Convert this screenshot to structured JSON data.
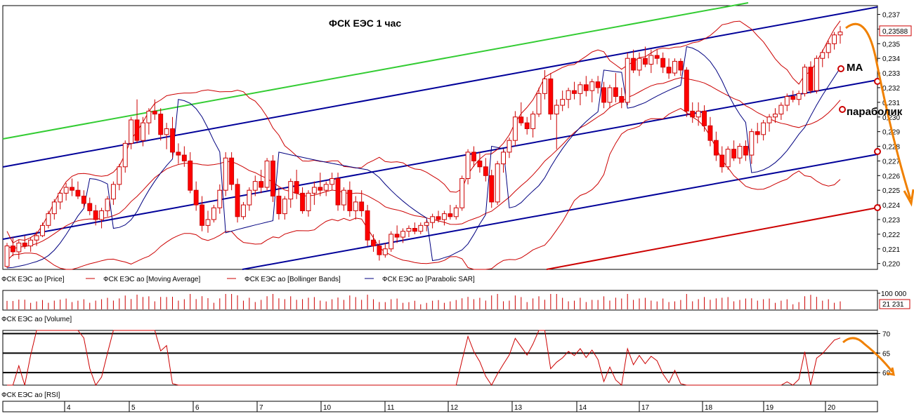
{
  "chart_data": {
    "type": "candlestick",
    "title": "ФСК ЕЭС   1 час",
    "annotations": [
      "МА",
      "параболик"
    ],
    "price_panel": {
      "ylim": [
        0.2196,
        0.2376
      ],
      "yticks": [
        "0,237",
        "0,236",
        "0,235",
        "0,234",
        "0,233",
        "0,232",
        "0,231",
        "0,230",
        "0,229",
        "0,228",
        "0,227",
        "0,226",
        "0,225",
        "0,224",
        "0,223",
        "0,222",
        "0,221",
        "0,220"
      ],
      "last_price_label": "0,23588",
      "candles_ohlc": [
        [
          0.2198,
          0.2214,
          0.2197,
          0.2212
        ],
        [
          0.2212,
          0.2218,
          0.2205,
          0.2208
        ],
        [
          0.2208,
          0.2216,
          0.2203,
          0.2214
        ],
        [
          0.2214,
          0.2219,
          0.221,
          0.2212
        ],
        [
          0.2212,
          0.2218,
          0.2208,
          0.2216
        ],
        [
          0.2216,
          0.2222,
          0.2212,
          0.2219
        ],
        [
          0.2219,
          0.2228,
          0.2218,
          0.2226
        ],
        [
          0.2226,
          0.2236,
          0.2224,
          0.2234
        ],
        [
          0.2234,
          0.2244,
          0.223,
          0.2242
        ],
        [
          0.2242,
          0.225,
          0.2237,
          0.2248
        ],
        [
          0.2248,
          0.2255,
          0.2243,
          0.2252
        ],
        [
          0.2252,
          0.2258,
          0.2246,
          0.225
        ],
        [
          0.225,
          0.2256,
          0.2244,
          0.2246
        ],
        [
          0.2246,
          0.225,
          0.2238,
          0.2241
        ],
        [
          0.2241,
          0.2245,
          0.2233,
          0.2236
        ],
        [
          0.2236,
          0.224,
          0.2226,
          0.223
        ],
        [
          0.223,
          0.2238,
          0.2224,
          0.2236
        ],
        [
          0.2236,
          0.2246,
          0.2232,
          0.2244
        ],
        [
          0.2244,
          0.2256,
          0.224,
          0.2254
        ],
        [
          0.2254,
          0.2268,
          0.225,
          0.2266
        ],
        [
          0.2266,
          0.2284,
          0.2262,
          0.2282
        ],
        [
          0.2282,
          0.23,
          0.2278,
          0.2298
        ],
        [
          0.2298,
          0.2312,
          0.2282,
          0.2284
        ],
        [
          0.2284,
          0.23,
          0.228,
          0.2296
        ],
        [
          0.2296,
          0.2306,
          0.2288,
          0.2304
        ],
        [
          0.2304,
          0.2312,
          0.2298,
          0.2302
        ],
        [
          0.2302,
          0.2306,
          0.2284,
          0.2288
        ],
        [
          0.2288,
          0.2296,
          0.2278,
          0.2292
        ],
        [
          0.2292,
          0.23,
          0.2272,
          0.2276
        ],
        [
          0.2276,
          0.2282,
          0.2268,
          0.2274
        ],
        [
          0.2274,
          0.228,
          0.2266,
          0.227
        ],
        [
          0.227,
          0.2276,
          0.2248,
          0.225
        ],
        [
          0.225,
          0.2256,
          0.2236,
          0.224
        ],
        [
          0.224,
          0.2246,
          0.2222,
          0.2226
        ],
        [
          0.2226,
          0.2236,
          0.2221,
          0.223
        ],
        [
          0.223,
          0.224,
          0.2228,
          0.2238
        ],
        [
          0.2238,
          0.2254,
          0.2234,
          0.225
        ],
        [
          0.225,
          0.2276,
          0.2246,
          0.2272
        ],
        [
          0.2272,
          0.2276,
          0.225,
          0.2254
        ],
        [
          0.2254,
          0.2258,
          0.2228,
          0.2232
        ],
        [
          0.2232,
          0.2242,
          0.223,
          0.224
        ],
        [
          0.224,
          0.2252,
          0.2236,
          0.225
        ],
        [
          0.225,
          0.226,
          0.2246,
          0.2256
        ],
        [
          0.2256,
          0.2264,
          0.2248,
          0.2252
        ],
        [
          0.2252,
          0.2272,
          0.225,
          0.227
        ],
        [
          0.227,
          0.2274,
          0.2242,
          0.2246
        ],
        [
          0.2246,
          0.2252,
          0.223,
          0.2234
        ],
        [
          0.2234,
          0.2246,
          0.223,
          0.2244
        ],
        [
          0.2244,
          0.2258,
          0.2238,
          0.2256
        ],
        [
          0.2256,
          0.2264,
          0.2244,
          0.2248
        ],
        [
          0.2248,
          0.2252,
          0.2234,
          0.2236
        ],
        [
          0.2236,
          0.225,
          0.2232,
          0.2248
        ],
        [
          0.2248,
          0.2256,
          0.224,
          0.2252
        ],
        [
          0.2252,
          0.2262,
          0.2246,
          0.225
        ],
        [
          0.225,
          0.2256,
          0.2246,
          0.2254
        ],
        [
          0.2254,
          0.2262,
          0.225,
          0.2258
        ],
        [
          0.2258,
          0.2262,
          0.2236,
          0.224
        ],
        [
          0.224,
          0.2252,
          0.2236,
          0.225
        ],
        [
          0.225,
          0.2256,
          0.2232,
          0.2236
        ],
        [
          0.2236,
          0.2246,
          0.223,
          0.2242
        ],
        [
          0.2242,
          0.225,
          0.2232,
          0.2236
        ],
        [
          0.2236,
          0.224,
          0.2212,
          0.2216
        ],
        [
          0.2216,
          0.222,
          0.2208,
          0.2212
        ],
        [
          0.2212,
          0.2216,
          0.2202,
          0.2206
        ],
        [
          0.2206,
          0.2214,
          0.2204,
          0.221
        ],
        [
          0.221,
          0.2222,
          0.2208,
          0.222
        ],
        [
          0.222,
          0.2226,
          0.2214,
          0.2218
        ],
        [
          0.2218,
          0.2224,
          0.2214,
          0.2222
        ],
        [
          0.2222,
          0.2226,
          0.2218,
          0.2224
        ],
        [
          0.2224,
          0.2228,
          0.222,
          0.2222
        ],
        [
          0.2222,
          0.2228,
          0.222,
          0.2226
        ],
        [
          0.2226,
          0.223,
          0.2222,
          0.2228
        ],
        [
          0.2228,
          0.2234,
          0.2224,
          0.2232
        ],
        [
          0.2232,
          0.2236,
          0.2228,
          0.223
        ],
        [
          0.223,
          0.2236,
          0.2226,
          0.2234
        ],
        [
          0.2234,
          0.224,
          0.223,
          0.2232
        ],
        [
          0.2232,
          0.224,
          0.223,
          0.2238
        ],
        [
          0.2238,
          0.226,
          0.2236,
          0.2258
        ],
        [
          0.2258,
          0.2278,
          0.2254,
          0.2276
        ],
        [
          0.2276,
          0.228,
          0.2266,
          0.227
        ],
        [
          0.227,
          0.2276,
          0.2262,
          0.2266
        ],
        [
          0.2266,
          0.2272,
          0.2256,
          0.226
        ],
        [
          0.226,
          0.2264,
          0.2238,
          0.2242
        ],
        [
          0.2242,
          0.227,
          0.224,
          0.2268
        ],
        [
          0.2268,
          0.2278,
          0.2262,
          0.2276
        ],
        [
          0.2276,
          0.2286,
          0.2272,
          0.2284
        ],
        [
          0.2284,
          0.2304,
          0.228,
          0.23
        ],
        [
          0.23,
          0.231,
          0.2294,
          0.2296
        ],
        [
          0.2296,
          0.23,
          0.2288,
          0.2292
        ],
        [
          0.2292,
          0.2304,
          0.2286,
          0.2302
        ],
        [
          0.2302,
          0.232,
          0.23,
          0.2316
        ],
        [
          0.2316,
          0.2332,
          0.2312,
          0.2326
        ],
        [
          0.2326,
          0.233,
          0.2298,
          0.2302
        ],
        [
          0.2302,
          0.2312,
          0.2278,
          0.2308
        ],
        [
          0.2308,
          0.2318,
          0.2304,
          0.2312
        ],
        [
          0.2312,
          0.232,
          0.2306,
          0.2318
        ],
        [
          0.2318,
          0.2324,
          0.2312,
          0.2316
        ],
        [
          0.2316,
          0.2324,
          0.2308,
          0.2322
        ],
        [
          0.2322,
          0.2328,
          0.2314,
          0.2318
        ],
        [
          0.2318,
          0.2326,
          0.231,
          0.2324
        ],
        [
          0.2324,
          0.2328,
          0.2316,
          0.232
        ],
        [
          0.232,
          0.2324,
          0.2306,
          0.231
        ],
        [
          0.231,
          0.2322,
          0.2306,
          0.232
        ],
        [
          0.232,
          0.233,
          0.231,
          0.2314
        ],
        [
          0.2314,
          0.232,
          0.2306,
          0.231
        ],
        [
          0.231,
          0.2344,
          0.2308,
          0.234
        ],
        [
          0.234,
          0.2346,
          0.233,
          0.2332
        ],
        [
          0.2332,
          0.2344,
          0.2328,
          0.234
        ],
        [
          0.234,
          0.2348,
          0.2334,
          0.2336
        ],
        [
          0.2336,
          0.2346,
          0.233,
          0.2342
        ],
        [
          0.2342,
          0.2346,
          0.2336,
          0.234
        ],
        [
          0.234,
          0.2344,
          0.233,
          0.2334
        ],
        [
          0.2334,
          0.234,
          0.2326,
          0.233
        ],
        [
          0.233,
          0.234,
          0.2328,
          0.2338
        ],
        [
          0.2338,
          0.234,
          0.2328,
          0.2332
        ],
        [
          0.2332,
          0.2334,
          0.23,
          0.2304
        ],
        [
          0.2304,
          0.231,
          0.2296,
          0.23
        ],
        [
          0.23,
          0.231,
          0.2294,
          0.2304
        ],
        [
          0.2304,
          0.2308,
          0.229,
          0.2294
        ],
        [
          0.2294,
          0.23,
          0.228,
          0.2284
        ],
        [
          0.2284,
          0.229,
          0.227,
          0.2274
        ],
        [
          0.2274,
          0.228,
          0.2262,
          0.2266
        ],
        [
          0.2266,
          0.228,
          0.2264,
          0.2278
        ],
        [
          0.2278,
          0.2284,
          0.227,
          0.2272
        ],
        [
          0.2272,
          0.2282,
          0.2268,
          0.228
        ],
        [
          0.228,
          0.2284,
          0.227,
          0.2274
        ],
        [
          0.2274,
          0.2292,
          0.2268,
          0.229
        ],
        [
          0.229,
          0.2296,
          0.2282,
          0.2288
        ],
        [
          0.2288,
          0.2298,
          0.2284,
          0.2296
        ],
        [
          0.2296,
          0.2302,
          0.229,
          0.23
        ],
        [
          0.23,
          0.2306,
          0.2296,
          0.2302
        ],
        [
          0.2302,
          0.231,
          0.2298,
          0.2308
        ],
        [
          0.2308,
          0.2316,
          0.2304,
          0.2314
        ],
        [
          0.2314,
          0.2318,
          0.231,
          0.2312
        ],
        [
          0.2312,
          0.2318,
          0.2308,
          0.2316
        ],
        [
          0.2316,
          0.2336,
          0.2314,
          0.2334
        ],
        [
          0.2334,
          0.2338,
          0.2316,
          0.2318
        ],
        [
          0.2318,
          0.2342,
          0.2316,
          0.234
        ],
        [
          0.234,
          0.2346,
          0.2334,
          0.2344
        ],
        [
          0.2344,
          0.2352,
          0.234,
          0.235
        ],
        [
          0.235,
          0.2358,
          0.2346,
          0.2356
        ],
        [
          0.2356,
          0.2362,
          0.235,
          0.2358
        ]
      ]
    },
    "volume_panel": {
      "ytick": "100 000",
      "last_label": "21 231"
    },
    "rsi_panel": {
      "yticks": [
        "70",
        "65",
        "60"
      ],
      "levels": [
        70,
        65,
        60
      ],
      "ylim": [
        56.8,
        70.8
      ]
    },
    "x_axis": {
      "labels": [
        "4",
        "5",
        "6",
        "7",
        "10",
        "11",
        "12",
        "13",
        "14",
        "17",
        "18",
        "19",
        "20"
      ]
    },
    "legend": {
      "price": "ФСК ЕЭС ао [Price]",
      "ma": "ФСК ЕЭС ао [Moving Average]",
      "bb": "ФСК ЕЭС ао [Bollinger Bands]",
      "psar": "ФСК ЕЭС ао [Parabolic SAR]",
      "volume": "ФСК ЕЭС ао [Volume]",
      "rsi": "ФСК ЕЭС ао [RSI]"
    },
    "colors": {
      "bull": "#ffffff",
      "bear": "#ff0000",
      "candle_outline": "#cc0000",
      "ma": "#cc0000",
      "bollinger": "#cc0000",
      "psar": "#000080",
      "channel": "#000099",
      "green_line": "#33cc33",
      "support_line": "#cc0000",
      "forecast": "#f08000"
    }
  }
}
